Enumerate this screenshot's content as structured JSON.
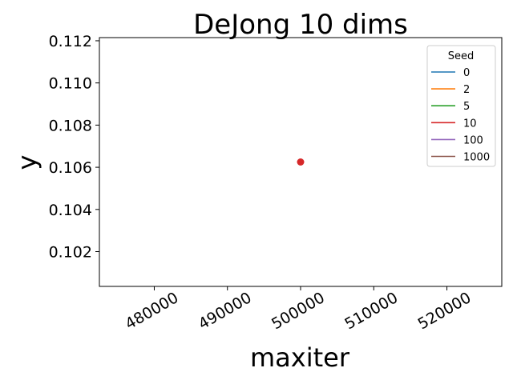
{
  "chart_data": {
    "type": "line",
    "title": "DeJong 10 dims",
    "xlabel": "maxiter",
    "ylabel": "y",
    "xlim": [
      472500,
      527500
    ],
    "ylim": [
      0.10035,
      0.11215
    ],
    "xticks": [
      480000,
      490000,
      500000,
      510000,
      520000
    ],
    "yticks": [
      0.102,
      0.104,
      0.106,
      0.108,
      0.11,
      0.112
    ],
    "ytick_labels": [
      "0.102",
      "0.104",
      "0.106",
      "0.108",
      "0.110",
      "0.112"
    ],
    "grid": false,
    "legend": {
      "title": "Seed",
      "placement": "top-right"
    },
    "series": [
      {
        "name": "0",
        "color": "#1f77b4",
        "x": [],
        "y": []
      },
      {
        "name": "2",
        "color": "#ff7f0e",
        "x": [],
        "y": []
      },
      {
        "name": "5",
        "color": "#2ca02c",
        "x": [],
        "y": []
      },
      {
        "name": "10",
        "color": "#d62728",
        "x": [
          500000
        ],
        "y": [
          0.10625
        ]
      },
      {
        "name": "100",
        "color": "#9467bd",
        "x": [],
        "y": []
      },
      {
        "name": "1000",
        "color": "#8c564b",
        "x": [],
        "y": []
      }
    ]
  }
}
